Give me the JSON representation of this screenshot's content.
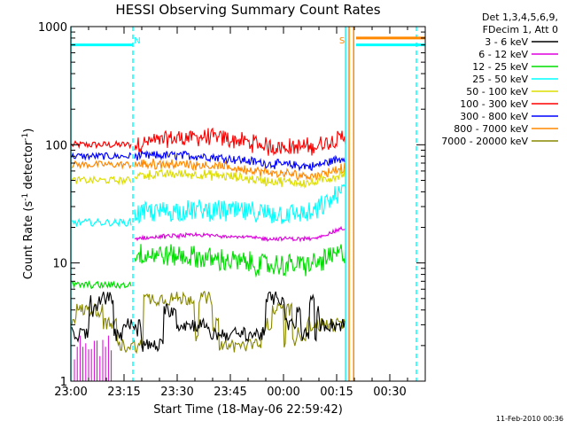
{
  "chart_data": {
    "type": "line",
    "title": "HESSI Observing Summary Count Rates",
    "xlabel": "Start Time (18-May-06 22:59:42)",
    "ylabel_main": "Count Rate (s",
    "ylabel_sup1": "-1",
    "ylabel_mid": " detector",
    "ylabel_sup2": "-1",
    "ylabel_end": ")",
    "yscale": "log",
    "ylim": [
      1,
      1000
    ],
    "xlim_minutes": [
      0,
      100
    ],
    "x_ticks": [
      {
        "m": 0,
        "label": "23:00"
      },
      {
        "m": 15,
        "label": "23:15"
      },
      {
        "m": 30,
        "label": "23:30"
      },
      {
        "m": 45,
        "label": "23:45"
      },
      {
        "m": 60,
        "label": "00:00"
      },
      {
        "m": 75,
        "label": "00:15"
      },
      {
        "m": 90,
        "label": "00:30"
      }
    ],
    "y_ticks": [
      {
        "v": 1,
        "label": "1"
      },
      {
        "v": 10,
        "label": "10"
      },
      {
        "v": 100,
        "label": "100"
      },
      {
        "v": 1000,
        "label": "1000"
      }
    ],
    "legend_header": [
      "Det 1,3,4,5,6,9,",
      "FDecim 1, Att 0"
    ],
    "series": [
      {
        "name": "3 - 6 keV",
        "color": "#000000"
      },
      {
        "name": "6 - 12 keV",
        "color": "#dd00dd"
      },
      {
        "name": "12 - 25 keV",
        "color": "#00dd00"
      },
      {
        "name": "25 - 50 keV",
        "color": "#00ffff"
      },
      {
        "name": "50 - 100 keV",
        "color": "#dddd00"
      },
      {
        "name": "100 - 300 keV",
        "color": "#ff0000"
      },
      {
        "name": "300 - 800 keV",
        "color": "#0000ff"
      },
      {
        "name": "800 - 7000 keV",
        "color": "#ff8800"
      },
      {
        "name": "7000 - 20000 keV",
        "color": "#888800"
      }
    ],
    "flag_bars": [
      {
        "color": "#00ffff",
        "x0": 0,
        "x1": 17.5,
        "value": 700
      },
      {
        "color": "#ff8800",
        "x0": 80.5,
        "x1": 100,
        "value": 800
      },
      {
        "color": "#00ffff",
        "x0": 80.5,
        "x1": 100,
        "value": 700
      }
    ],
    "markers": [
      {
        "label": "N",
        "m": 17.5,
        "color": "#00ffff"
      },
      {
        "label": "S",
        "m": 78,
        "color": "#ff8800"
      }
    ],
    "vlines": [
      {
        "m": 0,
        "color": "#00ffff",
        "dash": "none"
      },
      {
        "m": 17.5,
        "color": "#00ffff",
        "dash": "5,4"
      },
      {
        "m": 77.5,
        "color": "#00ffff",
        "dash": "none"
      },
      {
        "m": 78.5,
        "color": "#ff8800",
        "dash": "none"
      },
      {
        "m": 79.8,
        "color": "#ff8800",
        "dash": "none"
      },
      {
        "m": 97.5,
        "color": "#00ffff",
        "dash": "5,4"
      }
    ],
    "grid": false,
    "legend_position": "right"
  },
  "footer": {
    "timestamp": "11-Feb-2010 00:36"
  }
}
